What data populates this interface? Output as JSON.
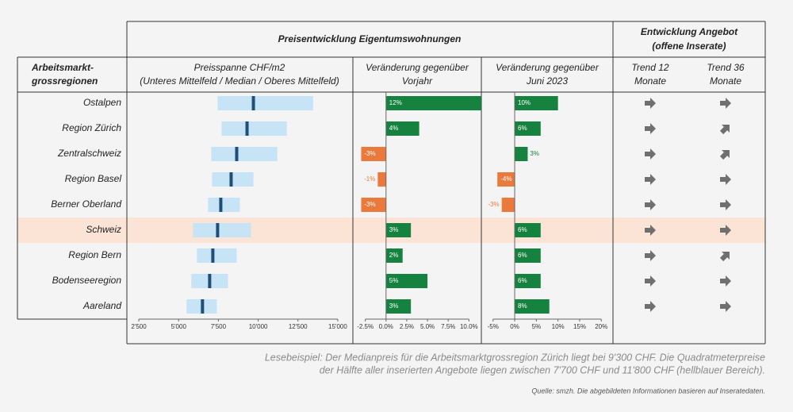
{
  "header": {
    "group_price": "Preisentwicklung Eigentumswohnungen",
    "group_supply": [
      "Entwicklung Angebot",
      "(offene Inserate)"
    ]
  },
  "columns": {
    "region": [
      "Arbeitsmarkt-",
      "grossregionen"
    ],
    "price": [
      "Preisspanne CHF/m2",
      "(Unteres Mittelfeld / Median / Oberes Mittelfeld)"
    ],
    "yoy": [
      "Veränderung gegenüber",
      "Vorjahr"
    ],
    "june": [
      "Veränderung gegenüber",
      "Juni 2023"
    ],
    "trend12": [
      "Trend 12",
      "Monate"
    ],
    "trend36": [
      "Trend 36",
      "Monate"
    ]
  },
  "regions": [
    "Ostalpen",
    "Region Zürich",
    "Zentralschweiz",
    "Region Basel",
    "Berner Oberland",
    "Schweiz",
    "Region Bern",
    "Bodenseeregion",
    "Aareland"
  ],
  "highlight_index": 5,
  "price": {
    "low": [
      7450,
      7700,
      7050,
      7100,
      6850,
      5900,
      6150,
      5800,
      5500
    ],
    "median": [
      9700,
      9300,
      8650,
      8300,
      7650,
      7450,
      7150,
      6950,
      6500
    ],
    "high": [
      13450,
      11800,
      11200,
      9700,
      8850,
      9550,
      8650,
      8100,
      7400
    ],
    "xlim": [
      1750,
      15950
    ],
    "xticks": [
      {
        "value": 2500,
        "label": "2'500"
      },
      {
        "value": 5000,
        "label": "5'000"
      },
      {
        "value": 7500,
        "label": "7'500"
      },
      {
        "value": 10000,
        "label": "10'000"
      },
      {
        "value": 12500,
        "label": "12'500"
      },
      {
        "value": 15000,
        "label": "15'000"
      }
    ],
    "range_color": "#c6e4f6",
    "median_color": "#1f4e79"
  },
  "yoy": {
    "values": [
      12,
      4,
      -3,
      -1,
      -3,
      3,
      2,
      5,
      3
    ],
    "value_labels": [
      "12%",
      "4%",
      "-3%",
      "-1%",
      "-3%",
      "3%",
      "2%",
      "5%",
      "3%"
    ],
    "xlim": [
      -4,
      11.5
    ],
    "xticks": [
      {
        "value": -2.5,
        "label": "-2.5%"
      },
      {
        "value": 0,
        "label": "0.0%"
      },
      {
        "value": 2.5,
        "label": "2.5%"
      },
      {
        "value": 5,
        "label": "5.0%"
      },
      {
        "value": 7.5,
        "label": "7.5%"
      },
      {
        "value": 10,
        "label": "10.0%"
      }
    ]
  },
  "june": {
    "values": [
      10,
      6,
      3,
      -4,
      -3,
      6,
      6,
      6,
      8
    ],
    "value_labels": [
      "10%",
      "6%",
      "3%",
      "-4%",
      "-3%",
      "6%",
      "6%",
      "6%",
      "8%"
    ],
    "xlim": [
      -7.7,
      22.7
    ],
    "xticks": [
      {
        "value": -5,
        "label": "-5%"
      },
      {
        "value": 0,
        "label": "0%"
      },
      {
        "value": 5,
        "label": "5%"
      },
      {
        "value": 10,
        "label": "10%"
      },
      {
        "value": 15,
        "label": "15%"
      },
      {
        "value": 20,
        "label": "20%"
      }
    ]
  },
  "positive_color": "#16823f",
  "negative_color": "#ea7a3c",
  "trend12": [
    0,
    0,
    0,
    0,
    0,
    0,
    0,
    0,
    0
  ],
  "trend36": [
    0,
    45,
    45,
    0,
    0,
    0,
    45,
    0,
    0
  ],
  "arrow_color": "#6f6f6f",
  "note": [
    "Lesebeispiel: Der Medianpreis für die Arbeitsmarktgrossregion Zürich liegt bei 9'300 CHF. Die Quadratmeterpreise",
    "der Hälfte aller inserierten Angebote liegen zwischen 7'700 CHF und 11'800 CHF (hellblauer Bereich)."
  ],
  "source": "Quelle: smzh. Die abgebildeten Informationen basieren auf Inseratedaten."
}
